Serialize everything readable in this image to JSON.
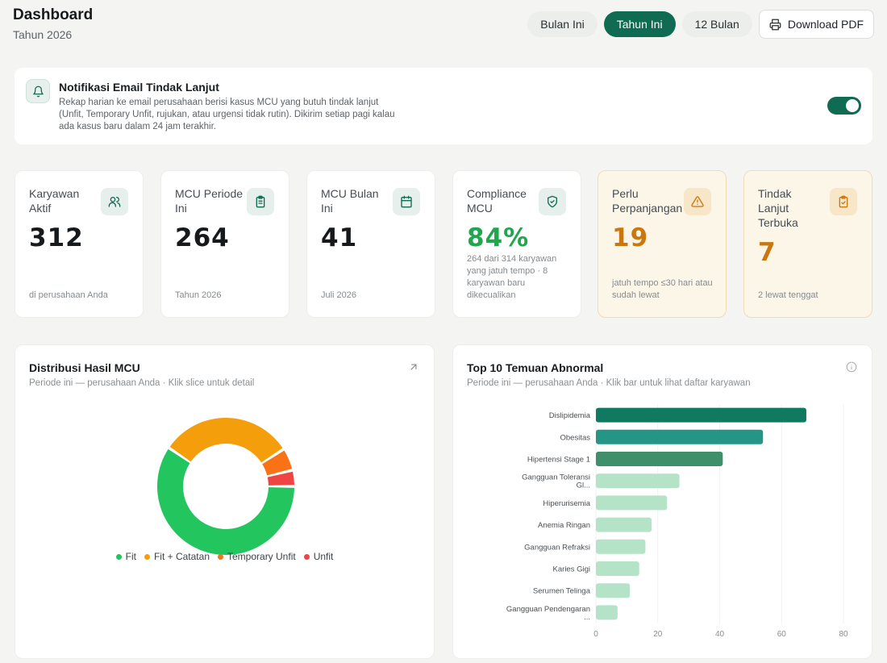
{
  "header": {
    "title": "Dashboard",
    "subtitle": "Tahun 2026",
    "periods": [
      "Bulan Ini",
      "Tahun Ini",
      "12 Bulan"
    ],
    "active_period": "Tahun Ini",
    "download_label": "Download PDF"
  },
  "notification": {
    "title": "Notifikasi Email Tindak Lanjut",
    "description": "Rekap harian ke email perusahaan berisi kasus MCU yang butuh tindak lanjut (Unfit, Temporary Unfit, rujukan, atau urgensi tidak rutin). Dikirim setiap pagi kalau ada kasus baru dalam 24 jam terakhir.",
    "enabled": true
  },
  "kpis": [
    {
      "label": "Karyawan Aktif",
      "value": "312",
      "footnote": "di perusahaan Anda",
      "icon": "users-icon",
      "color": "#171a1c",
      "warn": false
    },
    {
      "label": "MCU Periode Ini",
      "value": "264",
      "footnote": "Tahun 2026",
      "icon": "clipboard-list-icon",
      "color": "#171a1c",
      "warn": false
    },
    {
      "label": "MCU Bulan Ini",
      "value": "41",
      "footnote": "Juli 2026",
      "icon": "calendar-icon",
      "color": "#171a1c",
      "warn": false
    },
    {
      "label": "Compliance MCU",
      "value": "84%",
      "footnote": "264 dari 314 karyawan yang jatuh tempo · 8 karyawan baru dikecualikan",
      "icon": "shield-check-icon",
      "color": "#1fa64f",
      "warn": false
    },
    {
      "label": "Perlu Perpanjangan",
      "value": "19",
      "footnote": "jatuh tempo ≤30 hari atau sudah lewat",
      "icon": "alert-triangle-icon",
      "color": "#c9780f",
      "warn": true
    },
    {
      "label": "Tindak Lanjut Terbuka",
      "value": "7",
      "footnote": "2 lewat tenggat",
      "icon": "clipboard-check-icon",
      "color": "#c9780f",
      "warn": true
    }
  ],
  "donut": {
    "title": "Distribusi Hasil MCU",
    "subtitle": "Periode ini — perusahaan Anda · Klik slice untuk detail",
    "chart_data": {
      "type": "pie",
      "categories": [
        "Fit",
        "Fit + Catatan",
        "Temporary Unfit",
        "Unfit"
      ],
      "values": [
        157,
        83,
        14,
        10
      ],
      "colors": [
        "#22c55e",
        "#f59e0b",
        "#f97316",
        "#ef4444"
      ],
      "legend": "bottom"
    }
  },
  "bars": {
    "title": "Top 10 Temuan Abnormal",
    "subtitle": "Periode ini — perusahaan Anda · Klik bar untuk lihat daftar karyawan",
    "chart_data": {
      "type": "bar",
      "orientation": "horizontal",
      "categories": [
        "Dislipidemia",
        "Obesitas",
        "Hipertensi Stage 1",
        "Gangguan Toleransi Gl...",
        "Hiperurisemia",
        "Anemia Ringan",
        "Gangguan Refraksi",
        "Karies Gigi",
        "Serumen Telinga",
        "Gangguan Pendengaran ..."
      ],
      "values": [
        68,
        54,
        41,
        27,
        23,
        18,
        16,
        14,
        11,
        7
      ],
      "colors": [
        "#0f7a5f",
        "#259685",
        "#3f8f6a",
        "#b5e3c7",
        "#b5e3c7",
        "#b5e3c7",
        "#b5e3c7",
        "#b5e3c7",
        "#b5e3c7",
        "#b5e3c7"
      ],
      "xlim": [
        0,
        80
      ],
      "xticks": [
        0,
        20,
        40,
        60,
        80
      ],
      "grid": true
    }
  }
}
